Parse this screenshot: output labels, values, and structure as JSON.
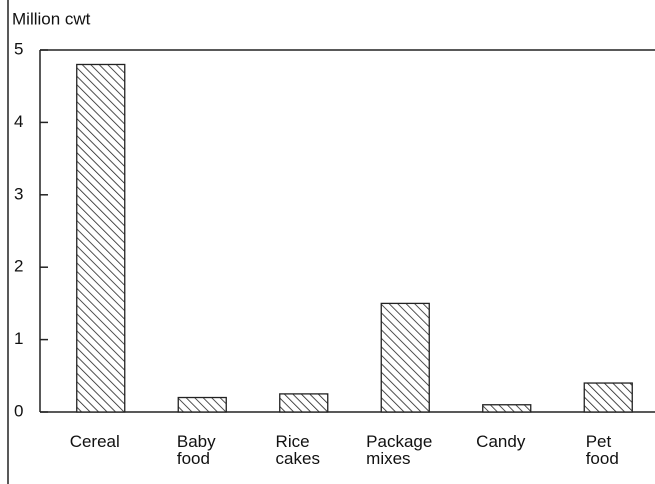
{
  "chart_data": {
    "type": "bar",
    "ylabel": "Million cwt",
    "categories": [
      "Cereal",
      "Baby food",
      "Rice cakes",
      "Package mixes",
      "Candy",
      "Pet food"
    ],
    "values": [
      4.8,
      0.2,
      0.25,
      1.5,
      0.1,
      0.4
    ],
    "color": "hatched",
    "ylim": [
      0,
      5
    ],
    "yticks": [
      0,
      1,
      2,
      3,
      4,
      5
    ],
    "grid": false
  }
}
